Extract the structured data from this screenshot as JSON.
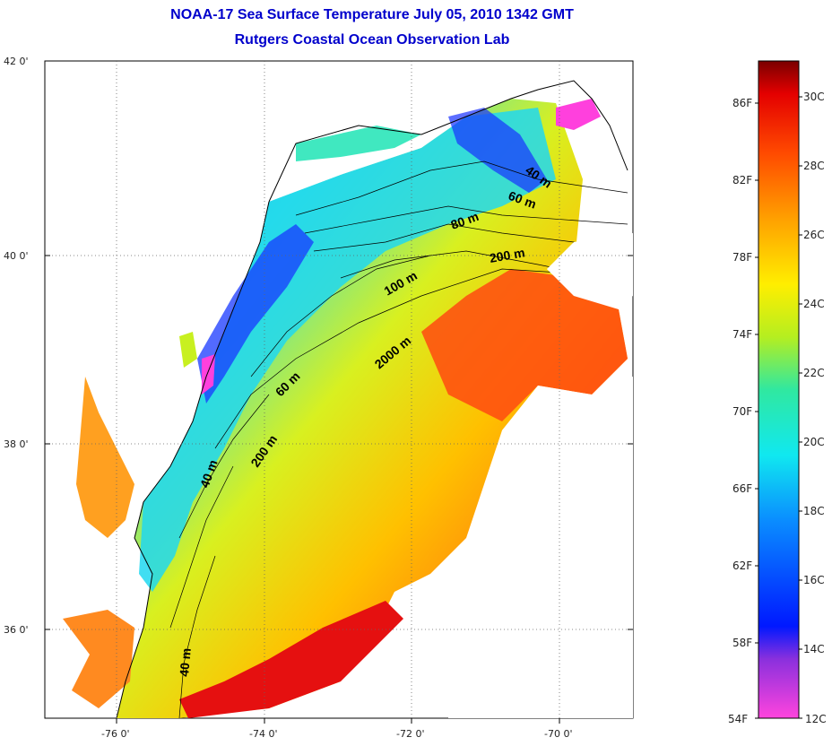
{
  "title": {
    "line1": "NOAA-17 Sea Surface Temperature July 05, 2010 1342 GMT",
    "line2": "Rutgers Coastal Ocean Observation Lab"
  },
  "axes": {
    "lat_ticks": [
      "42 0'",
      "40 0'",
      "38 0'",
      "36 0'"
    ],
    "lon_ticks": [
      "-76 0'",
      "-74 0'",
      "-72 0'",
      "-70 0'"
    ]
  },
  "contour_labels": [
    "40 m",
    "60 m",
    "80 m",
    "200 m",
    "100 m",
    "2000 m",
    "60 m",
    "200 m",
    "40 m",
    "40 m"
  ],
  "colorbar": {
    "fahrenheit_labels": [
      "86F",
      "82F",
      "78F",
      "74F",
      "70F",
      "66F",
      "62F",
      "58F",
      "54F"
    ],
    "celsius_labels": [
      "30C",
      "28C",
      "26C",
      "24C",
      "22C",
      "20C",
      "18C",
      "16C",
      "14C",
      "12C"
    ],
    "colors": [
      "#ff44dd",
      "#7a2bd8",
      "#0018ff",
      "#0a8cff",
      "#10e8f0",
      "#30e8a0",
      "#b5ee20",
      "#ffee00",
      "#ffa000",
      "#ff4a00",
      "#e40000",
      "#7a0000"
    ]
  },
  "colors": {
    "title": "#0000cc",
    "land": "#ffffff",
    "coastline": "#000000",
    "warm_water": "#ff5a10",
    "cool_water": "#20d8f0",
    "cold_water": "#1830ff"
  }
}
